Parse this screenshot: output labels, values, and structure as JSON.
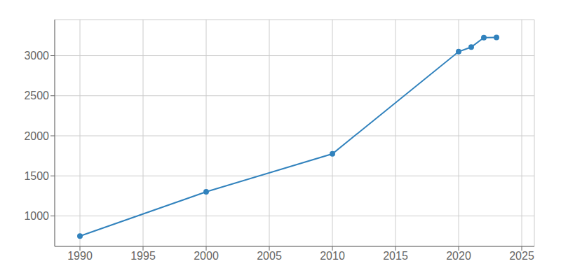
{
  "chart_data": {
    "type": "line",
    "x": [
      1990,
      2000,
      2010,
      2020,
      2021,
      2022,
      2023
    ],
    "values": [
      749,
      1301,
      1775,
      3050,
      3107,
      3225,
      3228
    ],
    "xlim": [
      1988,
      2026
    ],
    "ylim": [
      620,
      3450
    ],
    "xticks": [
      1990,
      1995,
      2000,
      2005,
      2010,
      2015,
      2020,
      2025
    ],
    "yticks": [
      1000,
      1500,
      2000,
      2500,
      3000
    ],
    "grid": true,
    "marker": "circle"
  }
}
